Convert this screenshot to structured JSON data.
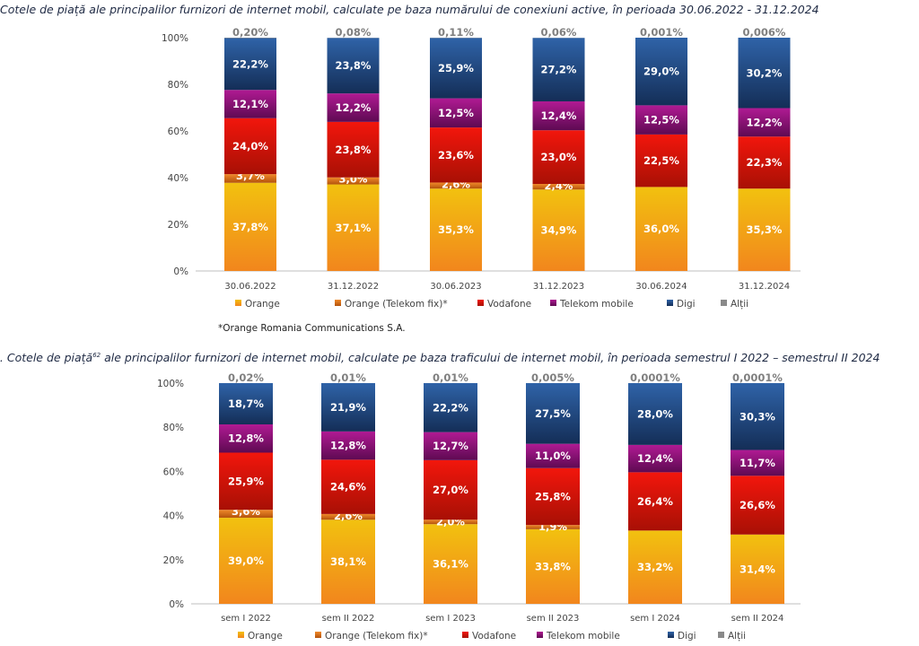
{
  "colors": {
    "orange_grad_top": "#f2c10f",
    "orange_grad_bottom": "#f2861d",
    "orange_fix_top": "#f08a2a",
    "orange_fix_bottom": "#b3520c",
    "vodafone_top": "#f2160c",
    "vodafone_bottom": "#a81005",
    "telekom_top": "#b01a93",
    "telekom_bottom": "#5e0a52",
    "digi_top": "#2f63a8",
    "digi_bottom": "#142e57",
    "altii": "#8a8a8a"
  },
  "chart_data": [
    {
      "type": "bar",
      "stacked": true,
      "title": "Cotele de piață ale principalilor furnizori de internet mobil, calculate pe baza numărului de conexiuni active, în perioada 30.06.2022 - 31.12.2024",
      "categories": [
        "30.06.2022",
        "31.12.2022",
        "30.06.2023",
        "31.12.2023",
        "30.06.2024",
        "31.12.2024"
      ],
      "yticks": [
        "0%",
        "20%",
        "40%",
        "60%",
        "80%",
        "100%"
      ],
      "ylim": [
        0,
        100
      ],
      "series": [
        {
          "name": "Orange",
          "key": "orange",
          "values": [
            37.8,
            37.1,
            35.3,
            34.9,
            36.0,
            35.3
          ],
          "labels": [
            "37,8%",
            "37,1%",
            "35,3%",
            "34,9%",
            "36,0%",
            "35,3%"
          ]
        },
        {
          "name": "Orange (Telekom fix)*",
          "key": "orange_fix",
          "values": [
            3.7,
            3.0,
            2.6,
            2.4,
            0,
            0
          ],
          "labels": [
            "3,7%",
            "3,0%",
            "2,6%",
            "2,4%",
            "",
            ""
          ]
        },
        {
          "name": "Vodafone",
          "key": "vodafone",
          "values": [
            24.0,
            23.8,
            23.6,
            23.0,
            22.5,
            22.3
          ],
          "labels": [
            "24,0%",
            "23,8%",
            "23,6%",
            "23,0%",
            "22,5%",
            "22,3%"
          ]
        },
        {
          "name": "Telekom mobile",
          "key": "telekom",
          "values": [
            12.1,
            12.2,
            12.5,
            12.4,
            12.5,
            12.2
          ],
          "labels": [
            "12,1%",
            "12,2%",
            "12,5%",
            "12,4%",
            "12,5%",
            "12,2%"
          ]
        },
        {
          "name": "Digi",
          "key": "digi",
          "values": [
            22.2,
            23.8,
            25.9,
            27.2,
            29.0,
            30.2
          ],
          "labels": [
            "22,2%",
            "23,8%",
            "25,9%",
            "27,2%",
            "29,0%",
            "30,2%"
          ]
        },
        {
          "name": "Alții",
          "key": "altii",
          "values": [
            0.2,
            0.08,
            0.11,
            0.06,
            0.001,
            0.006
          ],
          "labels": [
            "0,20%",
            "0,08%",
            "0,11%",
            "0,06%",
            "0,001%",
            "0,006%"
          ]
        }
      ],
      "legend": [
        "Orange",
        "Orange (Telekom fix)*",
        "Vodafone",
        "Telekom mobile",
        "Digi",
        "Alții"
      ],
      "footnote": "*Orange Romania Communications S.A."
    },
    {
      "type": "bar",
      "stacked": true,
      "title_prefix": "n. Cotele de piață",
      "title_sup": "62",
      "title_suffix": " ale principalilor furnizori de internet mobil, calculate pe baza traficului de internet mobil, în perioada semestrul I 2022 – semestrul II 2024",
      "categories": [
        "sem I 2022",
        "sem II 2022",
        "sem I 2023",
        "sem II 2023",
        "sem I 2024",
        "sem II 2024"
      ],
      "yticks": [
        "0%",
        "20%",
        "40%",
        "60%",
        "80%",
        "100%"
      ],
      "ylim": [
        0,
        100
      ],
      "series": [
        {
          "name": "Orange",
          "key": "orange",
          "values": [
            39.0,
            38.1,
            36.1,
            33.8,
            33.2,
            31.4
          ],
          "labels": [
            "39,0%",
            "38,1%",
            "36,1%",
            "33,8%",
            "33,2%",
            "31,4%"
          ]
        },
        {
          "name": "Orange (Telekom fix)*",
          "key": "orange_fix",
          "values": [
            3.6,
            2.6,
            2.0,
            1.9,
            0,
            0
          ],
          "labels": [
            "3,6%",
            "2,6%",
            "2,0%",
            "1,9%",
            "",
            ""
          ]
        },
        {
          "name": "Vodafone",
          "key": "vodafone",
          "values": [
            25.9,
            24.6,
            27.0,
            25.8,
            26.4,
            26.6
          ],
          "labels": [
            "25,9%",
            "24,6%",
            "27,0%",
            "25,8%",
            "26,4%",
            "26,6%"
          ]
        },
        {
          "name": "Telekom mobile",
          "key": "telekom",
          "values": [
            12.8,
            12.8,
            12.7,
            11.0,
            12.4,
            11.7
          ],
          "labels": [
            "12,8%",
            "12,8%",
            "12,7%",
            "11,0%",
            "12,4%",
            "11,7%"
          ]
        },
        {
          "name": "Digi",
          "key": "digi",
          "values": [
            18.7,
            21.9,
            22.2,
            27.5,
            28.0,
            30.3
          ],
          "labels": [
            "18,7%",
            "21,9%",
            "22,2%",
            "27,5%",
            "28,0%",
            "30,3%"
          ]
        },
        {
          "name": "Alții",
          "key": "altii",
          "values": [
            0.02,
            0.01,
            0.01,
            0.005,
            0.0001,
            0.0001
          ],
          "labels": [
            "0,02%",
            "0,01%",
            "0,01%",
            "0,005%",
            "0,0001%",
            "0,0001%"
          ]
        }
      ],
      "legend": [
        "Orange",
        "Orange (Telekom fix)*",
        "Vodafone",
        "Telekom mobile",
        "Digi",
        "Alții"
      ]
    }
  ]
}
